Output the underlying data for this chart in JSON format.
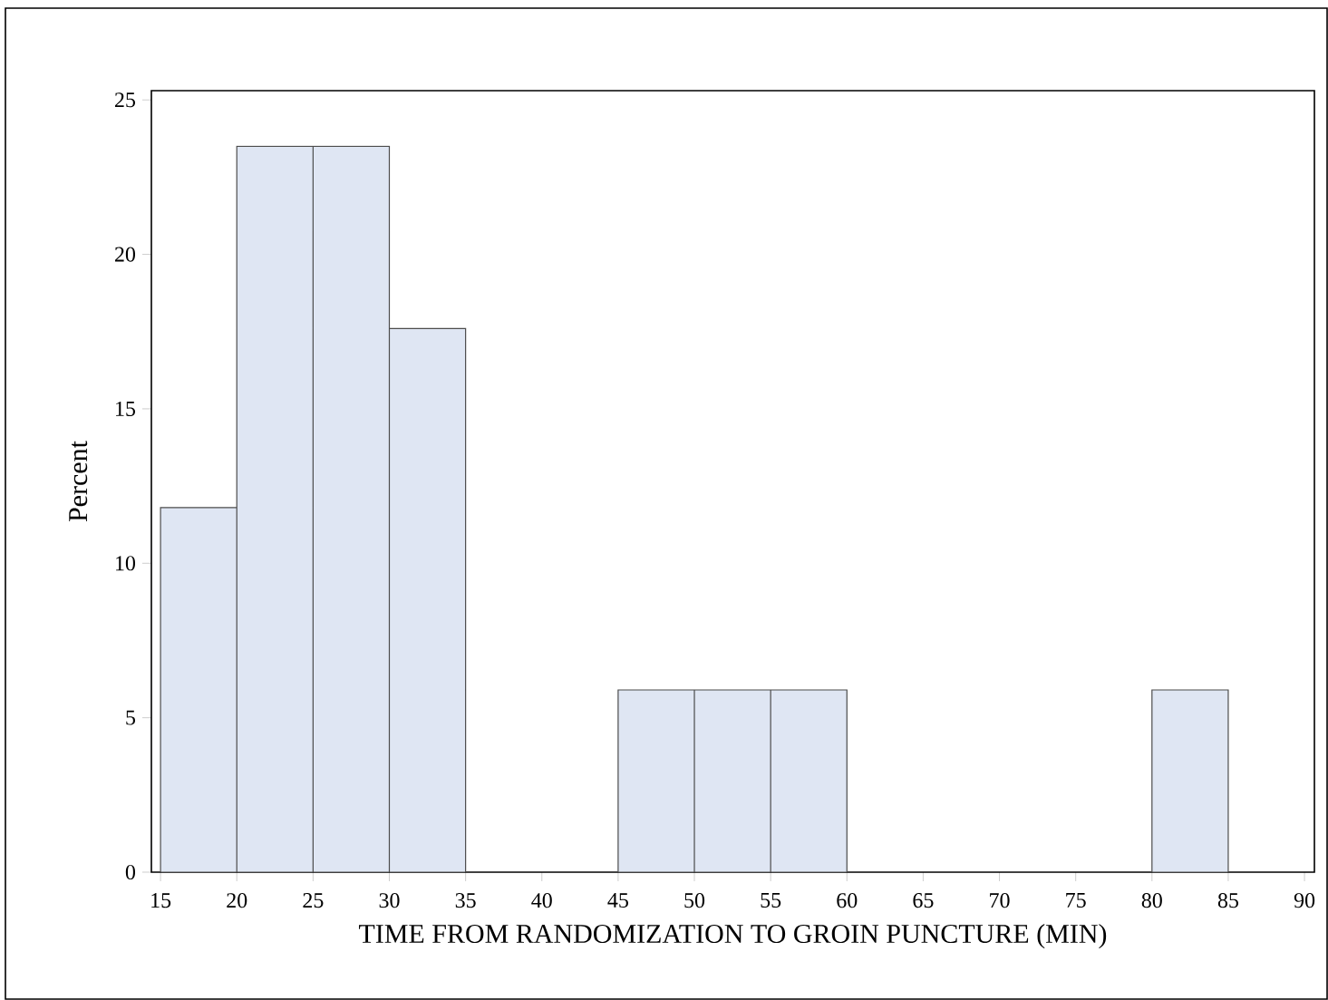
{
  "chart_data": {
    "type": "histogram",
    "xlabel": "TIME FROM RANDOMIZATION TO GROIN PUNCTURE (MIN)",
    "ylabel": "Percent",
    "bins": [
      15,
      20,
      25,
      30,
      35,
      40,
      45,
      50,
      55,
      60,
      65,
      70,
      75,
      80,
      85
    ],
    "values": [
      11.8,
      23.5,
      23.5,
      17.6,
      0,
      0,
      5.9,
      5.9,
      5.9,
      0,
      0,
      0,
      0,
      5.9
    ],
    "color": "#dfe6f3",
    "xlim": [
      14.4,
      90.65
    ],
    "ylim": [
      0,
      25.3
    ],
    "xticks": [
      15,
      20,
      25,
      30,
      35,
      40,
      45,
      50,
      55,
      60,
      65,
      70,
      75,
      80,
      85,
      90
    ],
    "yticks": [
      0,
      5,
      10,
      15,
      20,
      25
    ],
    "grid": false
  }
}
